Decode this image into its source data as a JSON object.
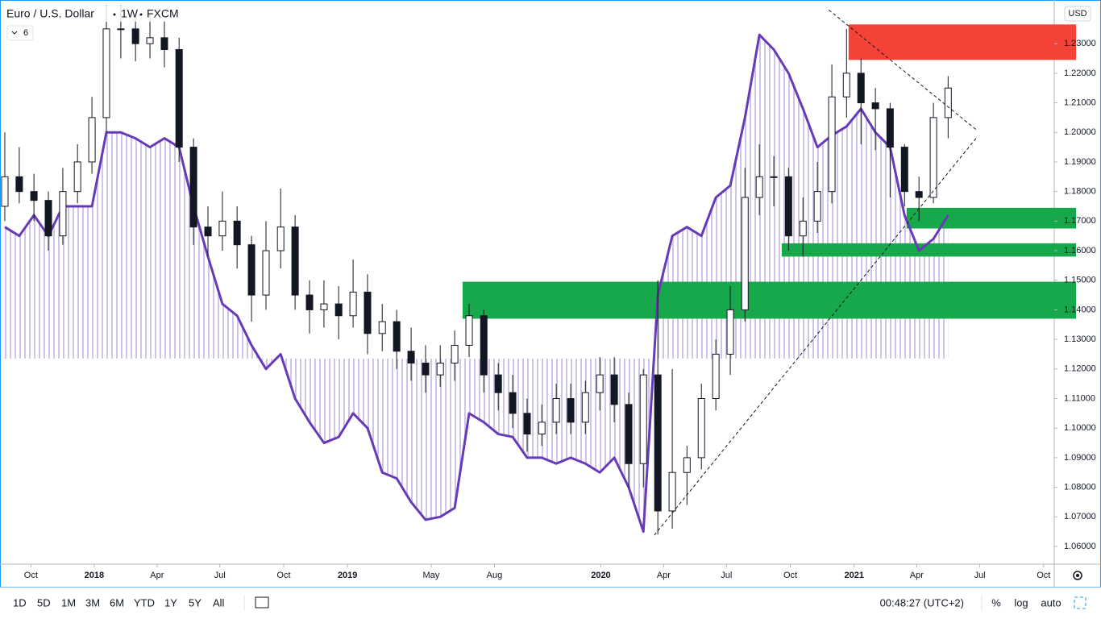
{
  "chart_data": {
    "type": "candlestick",
    "title": "Euro / U.S. Dollar",
    "interval": "1W",
    "source": "FXCM",
    "legend_count": 6,
    "currency": "USD",
    "x": [
      2017.647,
      2017.704,
      2017.762,
      2017.819,
      2017.876,
      2017.934,
      2017.991,
      2018.048,
      2018.105,
      2018.163,
      2018.22,
      2018.277,
      2018.335,
      2018.392,
      2018.449,
      2018.506,
      2018.564,
      2018.621,
      2018.678,
      2018.736,
      2018.793,
      2018.85,
      2018.907,
      2018.965,
      2019.022,
      2019.079,
      2019.137,
      2019.194,
      2019.251,
      2019.308,
      2019.366,
      2019.423,
      2019.48,
      2019.538,
      2019.595,
      2019.652,
      2019.709,
      2019.767,
      2019.824,
      2019.881,
      2019.939,
      2019.996,
      2020.053,
      2020.11,
      2020.168,
      2020.225,
      2020.282,
      2020.34,
      2020.397,
      2020.454,
      2020.511,
      2020.569,
      2020.626,
      2020.683,
      2020.741,
      2020.798,
      2020.855,
      2020.912,
      2020.97,
      2021.027,
      2021.084,
      2021.142,
      2021.199,
      2021.256,
      2021.313,
      2021.371
    ],
    "open": [
      1.175,
      1.185,
      1.18,
      1.177,
      1.165,
      1.18,
      1.19,
      1.205,
      1.235,
      1.235,
      1.23,
      1.232,
      1.228,
      1.195,
      1.168,
      1.165,
      1.17,
      1.162,
      1.145,
      1.16,
      1.168,
      1.145,
      1.14,
      1.142,
      1.138,
      1.146,
      1.132,
      1.136,
      1.126,
      1.122,
      1.118,
      1.122,
      1.128,
      1.138,
      1.118,
      1.112,
      1.105,
      1.098,
      1.102,
      1.11,
      1.102,
      1.112,
      1.118,
      1.108,
      1.088,
      1.118,
      1.072,
      1.085,
      1.09,
      1.11,
      1.125,
      1.14,
      1.178,
      1.185,
      1.185,
      1.165,
      1.17,
      1.18,
      1.212,
      1.22,
      1.21,
      1.208,
      1.195,
      1.18,
      1.178,
      1.205
    ],
    "high": [
      1.2,
      1.195,
      1.186,
      1.18,
      1.188,
      1.196,
      1.212,
      1.243,
      1.243,
      1.24,
      1.24,
      1.238,
      1.232,
      1.198,
      1.175,
      1.18,
      1.175,
      1.165,
      1.17,
      1.181,
      1.172,
      1.15,
      1.15,
      1.148,
      1.157,
      1.152,
      1.142,
      1.14,
      1.134,
      1.128,
      1.128,
      1.133,
      1.142,
      1.14,
      1.122,
      1.118,
      1.11,
      1.108,
      1.115,
      1.115,
      1.116,
      1.124,
      1.124,
      1.112,
      1.12,
      1.15,
      1.12,
      1.094,
      1.115,
      1.13,
      1.148,
      1.188,
      1.196,
      1.192,
      1.188,
      1.178,
      1.19,
      1.223,
      1.235,
      1.225,
      1.215,
      1.21,
      1.196,
      1.185,
      1.21,
      1.219
    ],
    "low": [
      1.17,
      1.176,
      1.17,
      1.16,
      1.162,
      1.176,
      1.186,
      1.2,
      1.225,
      1.224,
      1.225,
      1.222,
      1.19,
      1.162,
      1.158,
      1.16,
      1.154,
      1.136,
      1.14,
      1.154,
      1.14,
      1.132,
      1.134,
      1.13,
      1.134,
      1.125,
      1.126,
      1.12,
      1.116,
      1.112,
      1.114,
      1.116,
      1.124,
      1.112,
      1.106,
      1.1,
      1.092,
      1.094,
      1.098,
      1.098,
      1.098,
      1.106,
      1.102,
      1.08,
      1.08,
      1.064,
      1.066,
      1.074,
      1.086,
      1.106,
      1.118,
      1.136,
      1.172,
      1.175,
      1.16,
      1.158,
      1.166,
      1.176,
      1.205,
      1.196,
      1.194,
      1.178,
      1.175,
      1.17,
      1.176,
      1.198
    ],
    "close": [
      1.185,
      1.18,
      1.177,
      1.165,
      1.18,
      1.19,
      1.205,
      1.235,
      1.235,
      1.23,
      1.232,
      1.228,
      1.195,
      1.168,
      1.165,
      1.17,
      1.162,
      1.145,
      1.16,
      1.168,
      1.145,
      1.14,
      1.142,
      1.138,
      1.146,
      1.132,
      1.136,
      1.126,
      1.122,
      1.118,
      1.122,
      1.128,
      1.138,
      1.118,
      1.112,
      1.105,
      1.098,
      1.102,
      1.11,
      1.102,
      1.112,
      1.118,
      1.108,
      1.088,
      1.118,
      1.072,
      1.085,
      1.09,
      1.11,
      1.125,
      1.14,
      1.178,
      1.185,
      1.185,
      1.165,
      1.17,
      1.18,
      1.212,
      1.22,
      1.21,
      1.208,
      1.195,
      1.18,
      1.178,
      1.205,
      1.215
    ],
    "indicator": {
      "color": "#673ab7",
      "fill_color": "#d1c4e9",
      "baseline": 1.1235,
      "values": [
        1.168,
        1.165,
        1.172,
        1.165,
        1.175,
        1.175,
        1.175,
        1.2,
        1.2,
        1.198,
        1.195,
        1.198,
        1.195,
        1.175,
        1.158,
        1.142,
        1.138,
        1.128,
        1.12,
        1.125,
        1.11,
        1.102,
        1.095,
        1.097,
        1.105,
        1.1,
        1.085,
        1.083,
        1.075,
        1.069,
        1.07,
        1.073,
        1.105,
        1.102,
        1.098,
        1.097,
        1.09,
        1.09,
        1.088,
        1.09,
        1.088,
        1.085,
        1.09,
        1.08,
        1.065,
        1.145,
        1.165,
        1.168,
        1.165,
        1.178,
        1.182,
        1.205,
        1.233,
        1.228,
        1.22,
        1.208,
        1.195,
        1.199,
        1.202,
        1.208,
        1.2,
        1.195,
        1.172,
        1.16,
        1.164,
        1.172
      ]
    },
    "zones": [
      {
        "x": 2020.978,
        "ylo": 1.2245,
        "yhi": 1.2365,
        "color": "#f44336"
      },
      {
        "x": 2021.207,
        "ylo": 1.1675,
        "yhi": 1.1745,
        "color": "#17a84b"
      },
      {
        "x": 2020.714,
        "ylo": 1.158,
        "yhi": 1.1625,
        "color": "#17a84b"
      },
      {
        "x": 2019.454,
        "ylo": 1.137,
        "yhi": 1.1495,
        "color": "#17a84b"
      }
    ],
    "trendlines": [
      {
        "x": [
          2020.9,
          2021.485
        ],
        "y": [
          1.2414,
          1.2007
        ]
      },
      {
        "x": [
          2020.211,
          2021.485
        ],
        "y": [
          1.0638,
          1.1984
        ]
      }
    ],
    "up_color": "#ffffff",
    "down_color": "#131722",
    "xlim": [
      2017.628,
      2021.79
    ],
    "ylim": [
      1.054,
      1.2434
    ],
    "xticks": [
      {
        "value": 2017.75,
        "label": "Oct"
      },
      2018,
      {
        "value": 2018.248,
        "label": "Apr"
      },
      {
        "value": 2018.496,
        "label": "Jul"
      },
      {
        "value": 2018.748,
        "label": "Oct"
      },
      2019,
      {
        "value": 2019.33,
        "label": "May"
      },
      {
        "value": 2019.58,
        "label": "Aug"
      },
      2020,
      {
        "value": 2020.248,
        "label": "Apr"
      },
      {
        "value": 2020.496,
        "label": "Jul"
      },
      {
        "value": 2020.748,
        "label": "Oct"
      },
      2021,
      {
        "value": 2021.247,
        "label": "Apr"
      },
      {
        "value": 2021.496,
        "label": "Jul"
      },
      {
        "value": 2021.748,
        "label": "Oct"
      }
    ],
    "yticks": [
      {
        "value": 1.06,
        "label": "1.06000"
      },
      {
        "value": 1.07,
        "label": "1.07000"
      },
      {
        "value": 1.08,
        "label": "1.08000"
      },
      {
        "value": 1.09,
        "label": "1.09000"
      },
      {
        "value": 1.1,
        "label": "1.10000"
      },
      {
        "value": 1.11,
        "label": "1.11000"
      },
      {
        "value": 1.12,
        "label": "1.12000"
      },
      {
        "value": 1.13,
        "label": "1.13000"
      },
      {
        "value": 1.14,
        "label": "1.14000"
      },
      {
        "value": 1.15,
        "label": "1.15000"
      },
      {
        "value": 1.16,
        "label": "1.16000"
      },
      {
        "value": 1.17,
        "label": "1.17000"
      },
      {
        "value": 1.18,
        "label": "1.18000"
      },
      {
        "value": 1.19,
        "label": "1.19000"
      },
      {
        "value": 1.2,
        "label": "1.20000"
      },
      {
        "value": 1.21,
        "label": "1.21000"
      },
      {
        "value": 1.22,
        "label": "1.22000"
      },
      {
        "value": 1.23,
        "label": "1.23000"
      }
    ]
  },
  "toolbar": {
    "ranges": [
      "1D",
      "5D",
      "1M",
      "3M",
      "6M",
      "YTD",
      "1Y",
      "5Y",
      "All"
    ],
    "clock": "00:48:27 (UTC+2)",
    "options": [
      "%",
      "log",
      "auto"
    ]
  }
}
